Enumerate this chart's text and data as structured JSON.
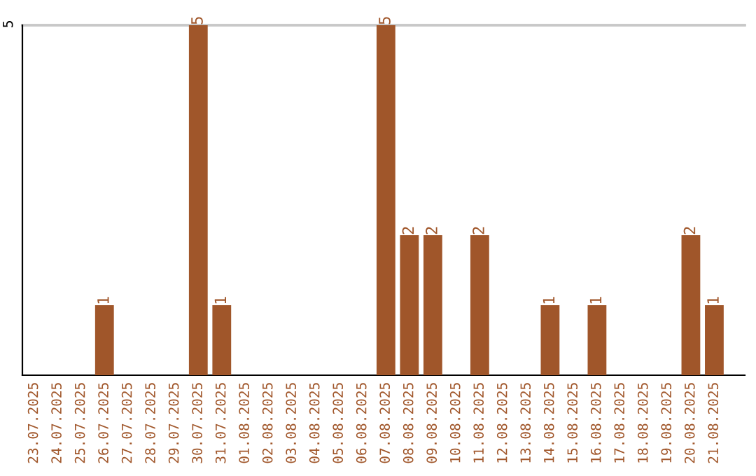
{
  "chart_data": {
    "type": "bar",
    "categories": [
      "23.07.2025",
      "24.07.2025",
      "25.07.2025",
      "26.07.2025",
      "27.07.2025",
      "28.07.2025",
      "29.07.2025",
      "30.07.2025",
      "31.07.2025",
      "01.08.2025",
      "02.08.2025",
      "03.08.2025",
      "04.08.2025",
      "05.08.2025",
      "06.08.2025",
      "07.08.2025",
      "08.08.2025",
      "09.08.2025",
      "10.08.2025",
      "11.08.2025",
      "12.08.2025",
      "13.08.2025",
      "14.08.2025",
      "15.08.2025",
      "16.08.2025",
      "17.08.2025",
      "18.08.2025",
      "19.08.2025",
      "20.08.2025",
      "21.08.2025"
    ],
    "values": [
      0,
      0,
      0,
      1,
      0,
      0,
      0,
      5,
      1,
      0,
      0,
      0,
      0,
      0,
      0,
      5,
      2,
      2,
      0,
      2,
      0,
      0,
      1,
      0,
      1,
      0,
      0,
      0,
      2,
      1
    ],
    "value_labels": [
      null,
      null,
      null,
      "1",
      null,
      null,
      null,
      "5",
      "1",
      null,
      null,
      null,
      null,
      null,
      null,
      "5",
      "2",
      "2",
      null,
      "2",
      null,
      null,
      "1",
      null,
      "1",
      null,
      null,
      null,
      "2",
      "1"
    ],
    "color": "#a0562a",
    "ylim": [
      0,
      5
    ],
    "yticks": [
      5
    ],
    "grid": "y",
    "legend": false
  }
}
